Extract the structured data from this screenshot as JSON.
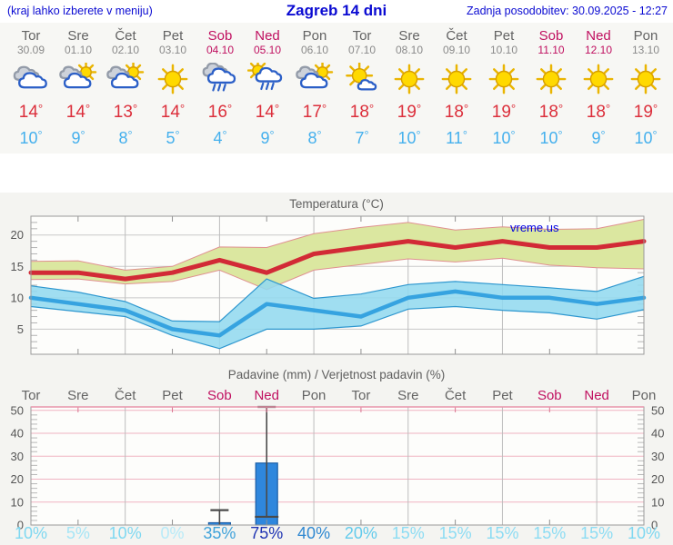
{
  "header": {
    "left_note": "(kraj lahko izberete v meniju)",
    "title": "Zagreb 14 dni",
    "updated": "Zadnja posodobitev: 30.09.2025 - 12:27"
  },
  "colors": {
    "header_blue": "#0a0ad2",
    "weekend": "#c01060",
    "weekday": "#636363",
    "date_gray": "#8a8a8a",
    "tmax_red": "#dc2f3b",
    "tmin_blue": "#45b0ed",
    "line_red": "#d22a36",
    "band_green": "#dbe7a0",
    "band_green_edge": "#e09090",
    "line_blue": "#36a3e0",
    "band_cyan": "#93d9ef",
    "band_cyan_edge": "#2e97cf",
    "bar_blue": "#2f87dd",
    "bar_edge": "#1c5ea6",
    "whisker": "#4a4a4a",
    "grid_gray": "#bdbdbd",
    "grid_pink": "#f0b4c2",
    "border_pink": "#e893aa",
    "axis_gray": "#9a9a9a",
    "watermark_blue": "#0000e0"
  },
  "forecast": {
    "days": [
      {
        "name": "Tor",
        "date": "30.09",
        "weekend": false,
        "icon": "cloudy",
        "tmax": 14,
        "tmin": 10
      },
      {
        "name": "Sre",
        "date": "01.10",
        "weekend": false,
        "icon": "sun-cloud",
        "tmax": 14,
        "tmin": 9
      },
      {
        "name": "Čet",
        "date": "02.10",
        "weekend": false,
        "icon": "sun-cloud",
        "tmax": 13,
        "tmin": 8
      },
      {
        "name": "Pet",
        "date": "03.10",
        "weekend": false,
        "icon": "sunny",
        "tmax": 14,
        "tmin": 5
      },
      {
        "name": "Sob",
        "date": "04.10",
        "weekend": true,
        "icon": "rain",
        "tmax": 16,
        "tmin": 4
      },
      {
        "name": "Ned",
        "date": "05.10",
        "weekend": true,
        "icon": "sun-cloud-rain",
        "tmax": 14,
        "tmin": 9
      },
      {
        "name": "Pon",
        "date": "06.10",
        "weekend": false,
        "icon": "sun-cloud",
        "tmax": 17,
        "tmin": 8
      },
      {
        "name": "Tor",
        "date": "07.10",
        "weekend": false,
        "icon": "sunny-small-cloud",
        "tmax": 18,
        "tmin": 7
      },
      {
        "name": "Sre",
        "date": "08.10",
        "weekend": false,
        "icon": "sunny",
        "tmax": 19,
        "tmin": 10
      },
      {
        "name": "Čet",
        "date": "09.10",
        "weekend": false,
        "icon": "sunny",
        "tmax": 18,
        "tmin": 11
      },
      {
        "name": "Pet",
        "date": "10.10",
        "weekend": false,
        "icon": "sunny",
        "tmax": 19,
        "tmin": 10
      },
      {
        "name": "Sob",
        "date": "11.10",
        "weekend": true,
        "icon": "sunny",
        "tmax": 18,
        "tmin": 10
      },
      {
        "name": "Ned",
        "date": "12.10",
        "weekend": true,
        "icon": "sunny",
        "tmax": 18,
        "tmin": 9
      },
      {
        "name": "Pon",
        "date": "13.10",
        "weekend": false,
        "icon": "sunny",
        "tmax": 19,
        "tmin": 10
      }
    ]
  },
  "chart_data": [
    {
      "type": "line",
      "title": "Temperatura (°C)",
      "watermark": "vreme.us",
      "categories": [
        "Tor 30.09",
        "Sre 01.10",
        "Čet 02.10",
        "Pet 03.10",
        "Sob 04.10",
        "Ned 05.10",
        "Pon 06.10",
        "Tor 07.10",
        "Sre 08.10",
        "Čet 09.10",
        "Pet 10.10",
        "Sob 11.10",
        "Ned 12.10",
        "Pon 13.10"
      ],
      "ylim": [
        1,
        23
      ],
      "yticks": [
        5,
        10,
        15,
        20
      ],
      "series": [
        {
          "name": "max_temp",
          "values": [
            14,
            14,
            13,
            14,
            16,
            14,
            17,
            18,
            19,
            18,
            19,
            18,
            18,
            19
          ]
        },
        {
          "name": "max_temp_upper",
          "values": [
            15.8,
            15.9,
            14.4,
            15.0,
            18.1,
            18.0,
            20.2,
            21.2,
            22.0,
            20.8,
            21.3,
            20.9,
            21.0,
            22.5
          ]
        },
        {
          "name": "max_temp_lower",
          "values": [
            12.9,
            13.0,
            12.2,
            12.6,
            14.4,
            11.3,
            14.4,
            15.3,
            16.2,
            15.7,
            16.3,
            15.2,
            14.8,
            14.6
          ]
        },
        {
          "name": "min_temp",
          "values": [
            10,
            9,
            8,
            5,
            4,
            9,
            8,
            7,
            10,
            11,
            10,
            10,
            9,
            10
          ]
        },
        {
          "name": "min_temp_upper",
          "values": [
            11.9,
            10.9,
            9.4,
            6.3,
            6.2,
            13.0,
            9.9,
            10.6,
            12.1,
            12.6,
            12.1,
            11.6,
            11.0,
            13.4
          ]
        },
        {
          "name": "min_temp_lower",
          "values": [
            8.6,
            7.8,
            7.0,
            4.0,
            1.9,
            5.0,
            5.0,
            5.5,
            8.2,
            8.6,
            8.0,
            7.6,
            6.6,
            8.1
          ]
        }
      ]
    },
    {
      "type": "bar",
      "title": "Padavine (mm) / Verjetnost padavin (%)",
      "day_labels": [
        "Tor",
        "Sre",
        "Čet",
        "Pet",
        "Sob",
        "Ned",
        "Pon",
        "Tor",
        "Sre",
        "Čet",
        "Pet",
        "Sob",
        "Ned",
        "Pon"
      ],
      "ylim": [
        0,
        51.5
      ],
      "yticks": [
        0,
        10,
        20,
        30,
        40,
        50
      ],
      "bars": [
        {
          "day": "Sob 04.10",
          "index": 5,
          "value_mm": 1,
          "whisker_max_mm": 6.5
        },
        {
          "day": "Ned 05.10",
          "index": 6,
          "value_mm": 27,
          "whisker_min_mm": 3.6,
          "whisker_max_mm": 51.5
        }
      ],
      "probabilities_percent": [
        10,
        5,
        10,
        0,
        35,
        75,
        40,
        20,
        15,
        15,
        15,
        15,
        15,
        10
      ],
      "prob_colors": {
        "0": "#b7eaf8",
        "5": "#a6e5f6",
        "10": "#7fd8f1",
        "15": "#8cdcf3",
        "20": "#63cbec",
        "35": "#3fa2da",
        "40": "#2f88d1",
        "75": "#1e33b2"
      }
    }
  ]
}
